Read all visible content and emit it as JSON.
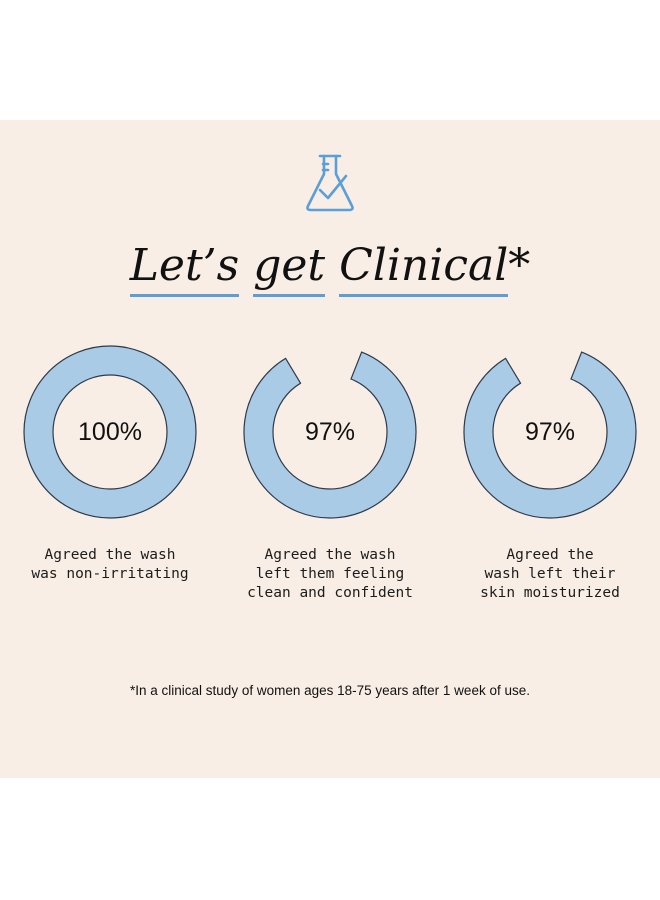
{
  "headline": {
    "words": [
      "Let’s",
      "get",
      "Clinical"
    ],
    "suffix": "*"
  },
  "icon": "flask-check-icon",
  "colors": {
    "accent": "#5b9fd6",
    "ring_fill": "#a9cbe6",
    "ring_stroke": "#2e3a4a",
    "background": "#f8eee6"
  },
  "stats": [
    {
      "value": "100%",
      "fraction": 1.0,
      "caption": [
        "Agreed the wash",
        "was non-irritating"
      ]
    },
    {
      "value": "97%",
      "fraction": 0.97,
      "caption": [
        "Agreed the wash",
        "left them feeling",
        "clean and confident"
      ]
    },
    {
      "value": "97%",
      "fraction": 0.97,
      "caption": [
        "Agreed the",
        "wash left their",
        "skin moisturized"
      ]
    }
  ],
  "footnote": "*In a clinical study of women ages 18-75 years after 1 week of use."
}
